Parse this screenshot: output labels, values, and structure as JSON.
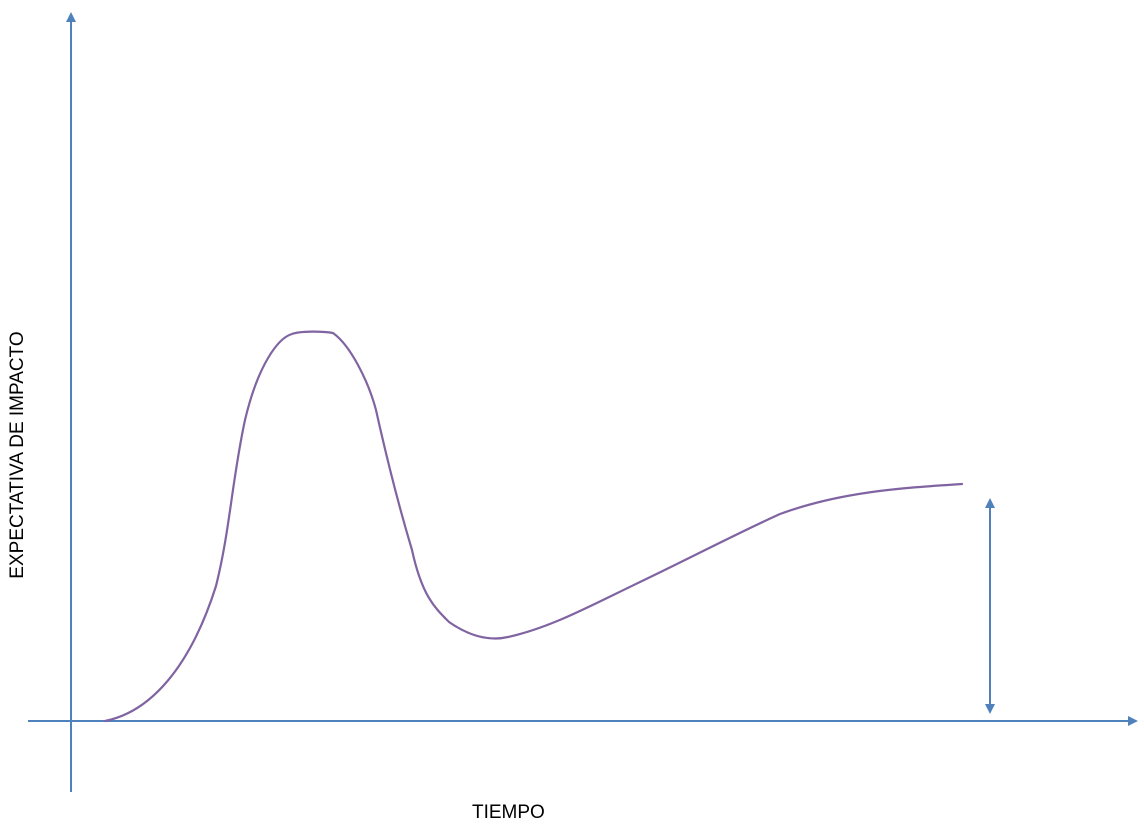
{
  "diagram": {
    "x_axis_label": "TIEMPO",
    "y_axis_label": "EXPECTATIVA DE IMPACTO",
    "colors": {
      "axis": "#4f81bd",
      "curve": "#8064a2",
      "text": "#000000"
    }
  }
}
